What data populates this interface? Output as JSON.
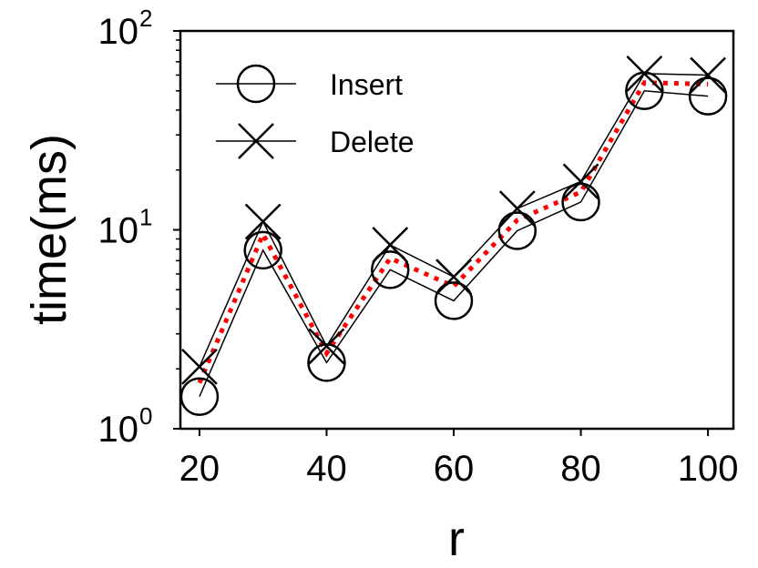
{
  "chart_data": {
    "type": "line",
    "xlabel": "r",
    "ylabel": "time(ms)",
    "yscale": "log",
    "xlim": [
      17,
      104
    ],
    "ylim": [
      1,
      100
    ],
    "xticks": [
      {
        "value": 20,
        "label": "20"
      },
      {
        "value": 40,
        "label": "40"
      },
      {
        "value": 60,
        "label": "60"
      },
      {
        "value": 80,
        "label": "80"
      },
      {
        "value": 100,
        "label": "100"
      }
    ],
    "yticks": [
      {
        "value": 1,
        "base": "10",
        "exp": "0"
      },
      {
        "value": 10,
        "base": "10",
        "exp": "1"
      },
      {
        "value": 100,
        "base": "10",
        "exp": "2"
      }
    ],
    "x": [
      20,
      30,
      40,
      50,
      60,
      70,
      80,
      90,
      100
    ],
    "series": [
      {
        "name": "Insert",
        "marker": "circle",
        "values": [
          1.45,
          7.9,
          2.15,
          6.3,
          4.4,
          9.9,
          13.8,
          50,
          47
        ]
      },
      {
        "name": "Delete",
        "marker": "x",
        "values": [
          2.05,
          11.0,
          2.6,
          8.4,
          5.8,
          12.8,
          17.5,
          61,
          60
        ]
      }
    ],
    "average_line": {
      "values": [
        1.7,
        9.5,
        2.4,
        7.2,
        5.2,
        11.2,
        15.5,
        55,
        54
      ],
      "color": "#ff0000",
      "style": "dotted"
    },
    "legend_position": "top-left",
    "grid": false
  }
}
